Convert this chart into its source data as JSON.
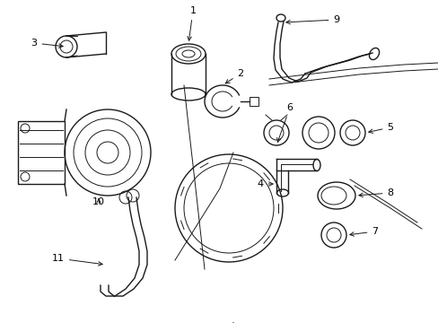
{
  "background_color": "#ffffff",
  "line_color": "#1a1a1a",
  "lw": 1.0,
  "tlw": 0.7,
  "fs": 8.0,
  "figsize": [
    4.89,
    3.6
  ],
  "dpi": 100
}
